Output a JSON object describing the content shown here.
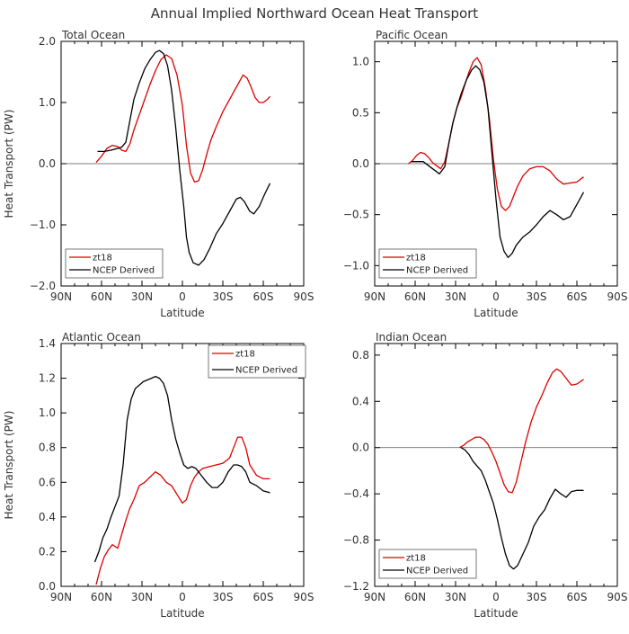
{
  "title": "Annual Implied Northward Ocean Heat Transport",
  "ylabel": "Heat Transport (PW)",
  "xlabel": "Latitude",
  "xticks": [
    "90N",
    "60N",
    "30N",
    "0",
    "30S",
    "60S",
    "90S"
  ],
  "colors": {
    "zt18": "#dd0000",
    "ncep": "#000000",
    "zero_line": "#555555"
  },
  "chart_data": [
    {
      "type": "line",
      "title": "Total Ocean",
      "ylim": [
        -2.0,
        2.0
      ],
      "yticks": [
        -2.0,
        -1.0,
        0.0,
        1.0,
        2.0
      ],
      "ytick_labels": [
        "−2.0",
        "−1.0",
        "0.0",
        "1.0",
        "2.0"
      ],
      "zero_line": true,
      "legend": "bottom-left",
      "series": [
        {
          "name": "zt18",
          "x": [
            64,
            60,
            56,
            52,
            48,
            45,
            42,
            39,
            36,
            32,
            28,
            24,
            20,
            16,
            12,
            8,
            4,
            0,
            -3,
            -6,
            -9,
            -12,
            -15,
            -18,
            -21,
            -25,
            -30,
            -35,
            -40,
            -45,
            -48,
            -51,
            -54,
            -57,
            -60,
            -63,
            -65
          ],
          "y": [
            0.02,
            0.12,
            0.25,
            0.3,
            0.28,
            0.22,
            0.2,
            0.32,
            0.55,
            0.8,
            1.05,
            1.3,
            1.52,
            1.7,
            1.78,
            1.72,
            1.45,
            0.95,
            0.3,
            -0.15,
            -0.3,
            -0.28,
            -0.1,
            0.15,
            0.38,
            0.6,
            0.85,
            1.05,
            1.25,
            1.45,
            1.4,
            1.25,
            1.08,
            1.0,
            1.0,
            1.05,
            1.1
          ]
        },
        {
          "name": "NCEP Derived",
          "x": [
            63,
            58,
            53,
            48,
            45,
            42,
            39,
            36,
            32,
            28,
            24,
            20,
            17,
            14,
            11,
            8,
            5,
            2,
            -1,
            -3,
            -5,
            -8,
            -12,
            -16,
            -20,
            -25,
            -30,
            -35,
            -40,
            -43,
            -46,
            -50,
            -53,
            -57,
            -61,
            -65
          ],
          "y": [
            0.2,
            0.2,
            0.22,
            0.25,
            0.27,
            0.35,
            0.7,
            1.05,
            1.32,
            1.55,
            1.7,
            1.82,
            1.85,
            1.8,
            1.6,
            1.2,
            0.6,
            -0.1,
            -0.7,
            -1.2,
            -1.45,
            -1.62,
            -1.66,
            -1.57,
            -1.4,
            -1.15,
            -0.98,
            -0.78,
            -0.58,
            -0.55,
            -0.62,
            -0.78,
            -0.82,
            -0.7,
            -0.5,
            -0.32
          ]
        }
      ]
    },
    {
      "type": "line",
      "title": "Pacific Ocean",
      "ylim": [
        -1.2,
        1.2
      ],
      "yticks": [
        -1.0,
        -0.5,
        0.0,
        0.5,
        1.0
      ],
      "ytick_labels": [
        "−1.0",
        "−0.5",
        "0.0",
        "0.5",
        "1.0"
      ],
      "zero_line": true,
      "legend": "bottom-left",
      "series": [
        {
          "name": "zt18",
          "x": [
            65,
            62,
            59,
            56,
            53,
            50,
            47,
            44,
            41,
            38,
            35,
            32,
            29,
            26,
            23,
            20,
            17,
            14,
            11,
            8,
            5,
            2,
            -1,
            -4,
            -7,
            -10,
            -13,
            -16,
            -20,
            -25,
            -30,
            -35,
            -40,
            -45,
            -50,
            -55,
            -60,
            -65
          ],
          "y": [
            0.0,
            0.03,
            0.08,
            0.11,
            0.1,
            0.06,
            0.01,
            -0.02,
            -0.05,
            0.02,
            0.2,
            0.4,
            0.55,
            0.65,
            0.78,
            0.9,
            1.0,
            1.04,
            0.97,
            0.75,
            0.45,
            0.05,
            -0.25,
            -0.42,
            -0.46,
            -0.42,
            -0.32,
            -0.22,
            -0.12,
            -0.05,
            -0.03,
            -0.03,
            -0.07,
            -0.15,
            -0.2,
            -0.19,
            -0.18,
            -0.13
          ]
        },
        {
          "name": "NCEP Derived",
          "x": [
            63,
            58,
            54,
            50,
            46,
            42,
            38,
            35,
            32,
            29,
            26,
            22,
            18,
            15,
            12,
            9,
            6,
            3,
            0,
            -3,
            -6,
            -9,
            -12,
            -15,
            -20,
            -25,
            -30,
            -35,
            -40,
            -45,
            -50,
            -55,
            -60,
            -65
          ],
          "y": [
            0.02,
            0.02,
            0.02,
            -0.02,
            -0.06,
            -0.1,
            -0.03,
            0.2,
            0.4,
            0.55,
            0.68,
            0.82,
            0.92,
            0.96,
            0.92,
            0.8,
            0.55,
            0.1,
            -0.35,
            -0.72,
            -0.86,
            -0.92,
            -0.88,
            -0.8,
            -0.72,
            -0.67,
            -0.6,
            -0.52,
            -0.46,
            -0.5,
            -0.55,
            -0.52,
            -0.4,
            -0.28
          ]
        }
      ]
    },
    {
      "type": "line",
      "title": "Atlantic Ocean",
      "ylim": [
        0.0,
        1.4
      ],
      "yticks": [
        0.0,
        0.2,
        0.4,
        0.6,
        0.8,
        1.0,
        1.2,
        1.4
      ],
      "ytick_labels": [
        "0.0",
        "0.2",
        "0.4",
        "0.6",
        "0.8",
        "1.0",
        "1.2",
        "1.4"
      ],
      "zero_line": false,
      "legend": "top-right",
      "series": [
        {
          "name": "zt18",
          "x": [
            64,
            61,
            58,
            55,
            52,
            48,
            45,
            42,
            39,
            36,
            32,
            28,
            24,
            20,
            16,
            12,
            8,
            4,
            0,
            -3,
            -6,
            -9,
            -12,
            -15,
            -20,
            -25,
            -30,
            -35,
            -38,
            -41,
            -44,
            -47,
            -50,
            -55,
            -60,
            -65
          ],
          "y": [
            0.01,
            0.1,
            0.17,
            0.21,
            0.24,
            0.22,
            0.3,
            0.38,
            0.45,
            0.5,
            0.58,
            0.6,
            0.63,
            0.66,
            0.64,
            0.6,
            0.58,
            0.53,
            0.48,
            0.5,
            0.58,
            0.63,
            0.66,
            0.68,
            0.69,
            0.7,
            0.71,
            0.74,
            0.8,
            0.86,
            0.86,
            0.8,
            0.7,
            0.64,
            0.62,
            0.62
          ]
        },
        {
          "name": "NCEP Derived",
          "x": [
            65,
            62,
            59,
            56,
            53,
            50,
            47,
            44,
            41,
            38,
            35,
            32,
            29,
            26,
            23,
            20,
            17,
            14,
            11,
            8,
            5,
            2,
            -1,
            -4,
            -7,
            -10,
            -14,
            -18,
            -22,
            -26,
            -30,
            -34,
            -38,
            -41,
            -44,
            -47,
            -50,
            -55,
            -60,
            -65
          ],
          "y": [
            0.14,
            0.2,
            0.28,
            0.33,
            0.4,
            0.46,
            0.52,
            0.7,
            0.96,
            1.08,
            1.14,
            1.16,
            1.18,
            1.19,
            1.2,
            1.21,
            1.2,
            1.17,
            1.1,
            0.96,
            0.85,
            0.77,
            0.7,
            0.68,
            0.69,
            0.68,
            0.64,
            0.6,
            0.57,
            0.57,
            0.6,
            0.66,
            0.7,
            0.7,
            0.69,
            0.66,
            0.6,
            0.58,
            0.55,
            0.54
          ]
        }
      ]
    },
    {
      "type": "line",
      "title": "Indian Ocean",
      "ylim": [
        -1.2,
        0.9
      ],
      "yticks": [
        -1.2,
        -0.8,
        -0.4,
        0.0,
        0.4,
        0.8
      ],
      "ytick_labels": [
        "−1.2",
        "−0.8",
        "−0.4",
        "0.0",
        "0.4",
        "0.8"
      ],
      "zero_line": true,
      "legend": "bottom-left",
      "series": [
        {
          "name": "zt18",
          "x": [
            27,
            24,
            21,
            18,
            15,
            12,
            9,
            6,
            3,
            0,
            -3,
            -6,
            -9,
            -12,
            -15,
            -18,
            -22,
            -26,
            -30,
            -34,
            -38,
            -42,
            -45,
            -48,
            -52,
            -56,
            -60,
            -65
          ],
          "y": [
            0.0,
            0.02,
            0.05,
            0.07,
            0.09,
            0.09,
            0.07,
            0.03,
            -0.04,
            -0.12,
            -0.22,
            -0.32,
            -0.38,
            -0.39,
            -0.3,
            -0.15,
            0.05,
            0.22,
            0.35,
            0.45,
            0.56,
            0.65,
            0.68,
            0.66,
            0.6,
            0.54,
            0.55,
            0.59
          ]
        },
        {
          "name": "NCEP Derived",
          "x": [
            26,
            23,
            20,
            17,
            14,
            11,
            8,
            5,
            2,
            -1,
            -4,
            -7,
            -10,
            -13,
            -16,
            -20,
            -24,
            -28,
            -32,
            -36,
            -40,
            -44,
            -48,
            -52,
            -56,
            -60,
            -65
          ],
          "y": [
            0.0,
            -0.02,
            -0.06,
            -0.12,
            -0.16,
            -0.2,
            -0.28,
            -0.38,
            -0.48,
            -0.62,
            -0.78,
            -0.92,
            -1.02,
            -1.05,
            -1.02,
            -0.92,
            -0.82,
            -0.68,
            -0.6,
            -0.54,
            -0.44,
            -0.36,
            -0.4,
            -0.43,
            -0.38,
            -0.37,
            -0.37
          ]
        }
      ]
    }
  ]
}
